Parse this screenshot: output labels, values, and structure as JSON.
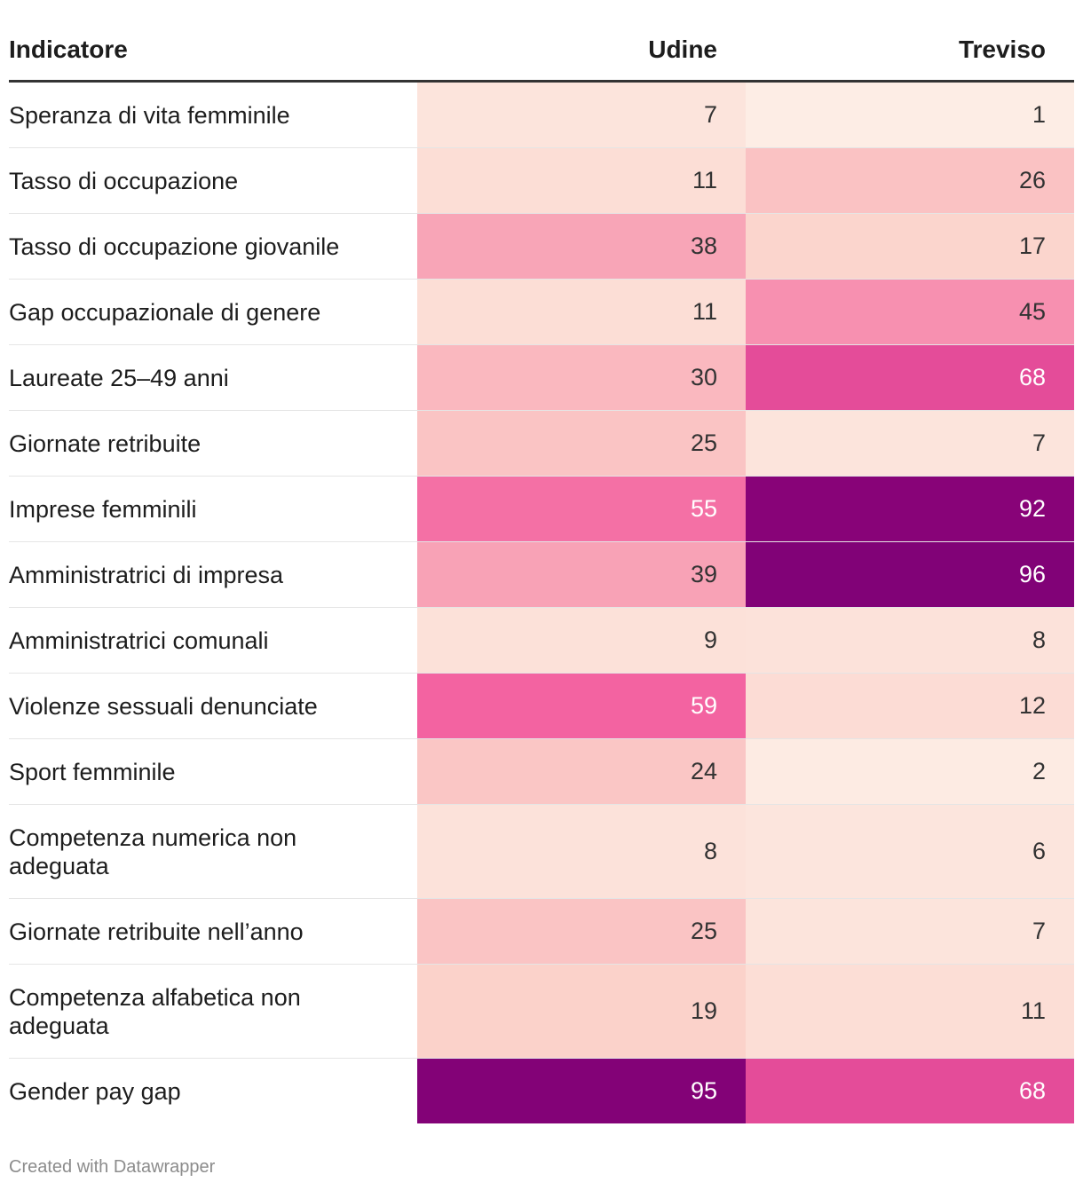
{
  "chart_data": {
    "type": "table",
    "columns": [
      "Indicatore",
      "Udine",
      "Treviso"
    ],
    "rows": [
      {
        "label": "Speranza di vita femminile",
        "udine": 7,
        "treviso": 1
      },
      {
        "label": "Tasso di occupazione",
        "udine": 11,
        "treviso": 26
      },
      {
        "label": "Tasso di occupazione giovanile",
        "udine": 38,
        "treviso": 17
      },
      {
        "label": "Gap occupazionale di genere",
        "udine": 11,
        "treviso": 45
      },
      {
        "label": "Laureate 25–49 anni",
        "udine": 30,
        "treviso": 68
      },
      {
        "label": "Giornate retribuite",
        "udine": 25,
        "treviso": 7
      },
      {
        "label": "Imprese femminili",
        "udine": 55,
        "treviso": 92
      },
      {
        "label": "Amministratrici di impresa",
        "udine": 39,
        "treviso": 96
      },
      {
        "label": "Amministratrici comunali",
        "udine": 9,
        "treviso": 8
      },
      {
        "label": "Violenze sessuali denunciate",
        "udine": 59,
        "treviso": 12
      },
      {
        "label": "Sport femminile",
        "udine": 24,
        "treviso": 2
      },
      {
        "label": "Competenza numerica non adeguata",
        "udine": 8,
        "treviso": 6
      },
      {
        "label": "Giornate retribuite nell’anno",
        "udine": 25,
        "treviso": 7
      },
      {
        "label": "Competenza alfabetica non adeguata",
        "udine": 19,
        "treviso": 11
      },
      {
        "label": "Gender pay gap",
        "udine": 95,
        "treviso": 68
      }
    ],
    "color_scale": {
      "stops": [
        {
          "value": 0,
          "color": "#fdeee6"
        },
        {
          "value": 20,
          "color": "#fbd0c9"
        },
        {
          "value": 40,
          "color": "#f8a0b5"
        },
        {
          "value": 60,
          "color": "#f360a0"
        },
        {
          "value": 75,
          "color": "#d63a92"
        },
        {
          "value": 90,
          "color": "#8c0479"
        },
        {
          "value": 100,
          "color": "#7a0075"
        }
      ],
      "light_text_threshold": 50,
      "light_text_color": "#ffffff",
      "dark_text_color": "#333333"
    }
  },
  "footer": {
    "credit": "Created with Datawrapper"
  }
}
